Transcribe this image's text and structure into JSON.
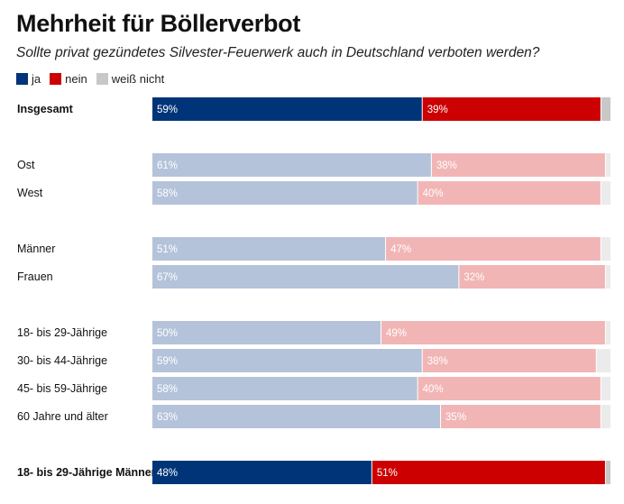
{
  "title": "Mehrheit für Böllerverbot",
  "subtitle": "Sollte privat gezündetes Silvester-Feuerwerk auch in Deutschland verboten werden?",
  "legend": [
    {
      "label": "ja",
      "color": "#003478"
    },
    {
      "label": "nein",
      "color": "#cc0000"
    },
    {
      "label": "weiß nicht",
      "color": "#c8c8c8"
    }
  ],
  "chart_data": {
    "type": "bar",
    "orientation": "horizontal",
    "stacked": true,
    "unit": "%",
    "title": "Mehrheit für Böllerverbot",
    "subtitle": "Sollte privat gezündetes Silvester-Feuerwerk auch in Deutschland verboten werden?",
    "categories": [
      "Insgesamt",
      "Ost",
      "West",
      "Männer",
      "Frauen",
      "18- bis 29-Jährige",
      "30- bis 44-Jährige",
      "45- bis 59-Jährige",
      "60 Jahre und älter",
      "18- bis 29-Jährige Männer"
    ],
    "highlighted": [
      "Insgesamt",
      "18- bis 29-Jährige Männer"
    ],
    "series": [
      {
        "name": "ja",
        "values": [
          59,
          61,
          58,
          51,
          67,
          50,
          59,
          58,
          63,
          48
        ]
      },
      {
        "name": "nein",
        "values": [
          39,
          38,
          40,
          47,
          32,
          49,
          38,
          40,
          35,
          51
        ]
      },
      {
        "name": "weiß nicht",
        "values": [
          2,
          1,
          2,
          2,
          1,
          1,
          3,
          2,
          2,
          1
        ]
      }
    ],
    "colors": {
      "ja": "#003478",
      "nein": "#cc0000",
      "weiß nicht": "#c8c8c8",
      "ja_muted": "#b4c3da",
      "nein_muted": "#f2b5b5",
      "weiß_nicht_muted": "#ebebeb"
    },
    "xlim": [
      0,
      100
    ]
  }
}
